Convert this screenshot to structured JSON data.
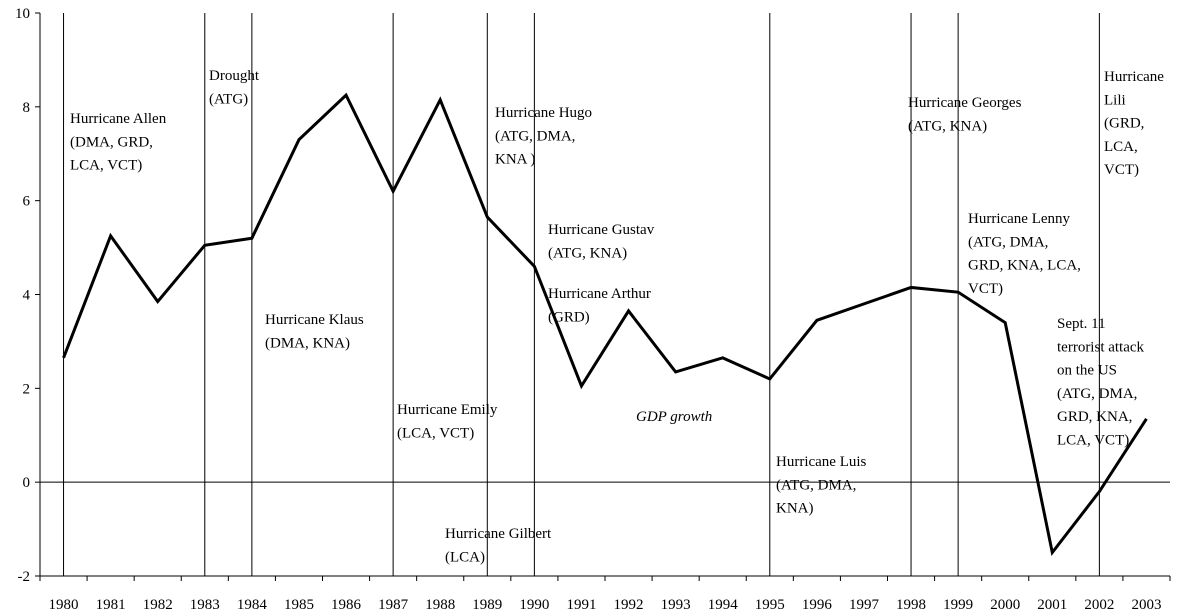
{
  "chart_data": {
    "type": "line",
    "categories": [
      "1980",
      "1981",
      "1982",
      "1983",
      "1984",
      "1985",
      "1986",
      "1987",
      "1988",
      "1989",
      "1990",
      "1991",
      "1992",
      "1993",
      "1994",
      "1995",
      "1996",
      "1997",
      "1998",
      "1999",
      "2000",
      "2001",
      "2002",
      "2003"
    ],
    "series": [
      {
        "name": "GDP growth",
        "color": "#000000",
        "values": [
          2.65,
          5.25,
          3.85,
          5.05,
          5.2,
          7.3,
          8.25,
          6.2,
          8.15,
          5.65,
          4.6,
          2.05,
          3.65,
          2.35,
          2.65,
          2.2,
          3.45,
          3.8,
          4.15,
          4.05,
          3.4,
          -1.5,
          -0.2,
          1.35
        ]
      }
    ],
    "ylim": [
      -2,
      10
    ],
    "yticks": [
      -2,
      0,
      2,
      4,
      6,
      8,
      10
    ],
    "grid": false,
    "event_lines": [
      "1980",
      "1983",
      "1984",
      "1987",
      "1989",
      "1990",
      "1995",
      "1998",
      "1999",
      "2002"
    ],
    "annotations": [
      [
        "Hurricane Allen",
        "(DMA, GRD,",
        "LCA, VCT)"
      ],
      [
        "Drought",
        "(ATG)"
      ],
      [
        "Hurricane Klaus",
        "(DMA, KNA)"
      ],
      [
        "Hurricane Emily",
        "(LCA, VCT)"
      ],
      [
        "Hurricane Gilbert",
        "(LCA)"
      ],
      [
        "Hurricane Hugo",
        "(ATG, DMA,",
        "KNA )"
      ],
      [
        "Hurricane Gustav",
        "(ATG, KNA)"
      ],
      [
        "Hurricane Arthur",
        "(GRD)"
      ],
      [
        "Hurricane Luis",
        "(ATG, DMA,",
        "KNA)"
      ],
      [
        "Hurricane Georges",
        "(ATG, KNA)"
      ],
      [
        "Hurricane Lenny",
        "(ATG, DMA,",
        "GRD, KNA, LCA,",
        "VCT)"
      ],
      [
        "Sept. 11",
        "terrorist attack",
        "on the US",
        "(ATG, DMA,",
        "GRD, KNA,",
        "LCA, VCT)"
      ],
      [
        "Hurricane",
        "Lili",
        "(GRD,",
        "LCA,",
        "VCT)"
      ]
    ]
  }
}
